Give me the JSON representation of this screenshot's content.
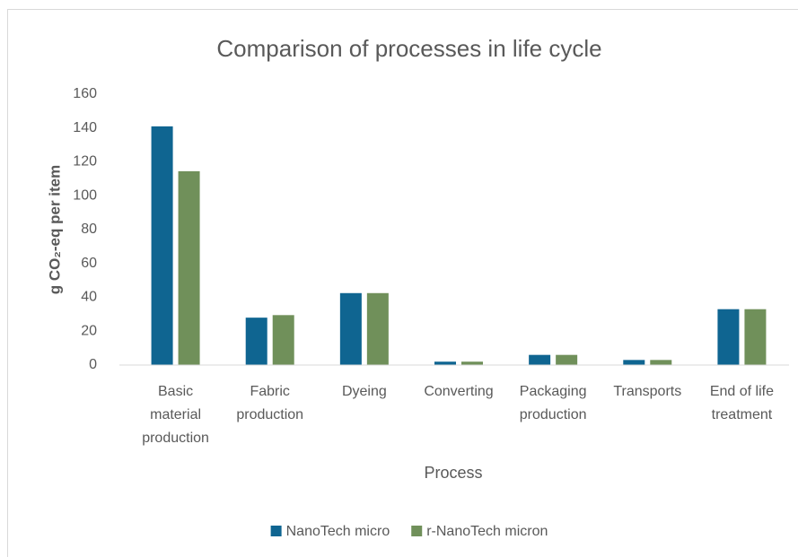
{
  "chart_data": {
    "type": "bar",
    "title": "Comparison of processes in life cycle",
    "x_label": "Process",
    "y_label": "g CO₂-eq per item",
    "categories": [
      "Basic material production",
      "Fabric production",
      "Dyeing",
      "Converting",
      "Packaging production",
      "Transports",
      "End of life treatment"
    ],
    "series": [
      {
        "name": "NanoTech micro",
        "color": "#0f6591",
        "values": [
          141,
          28,
          42.5,
          2,
          6,
          3,
          33
        ]
      },
      {
        "name": "r-NanoTech micron",
        "color": "#70905a",
        "values": [
          114.5,
          29.5,
          42.5,
          2,
          6,
          3,
          33
        ]
      }
    ],
    "ylim": [
      0,
      160
    ],
    "yticks": [
      0,
      20,
      40,
      60,
      80,
      100,
      120,
      140,
      160
    ],
    "grid": false,
    "legend": "bottom"
  }
}
